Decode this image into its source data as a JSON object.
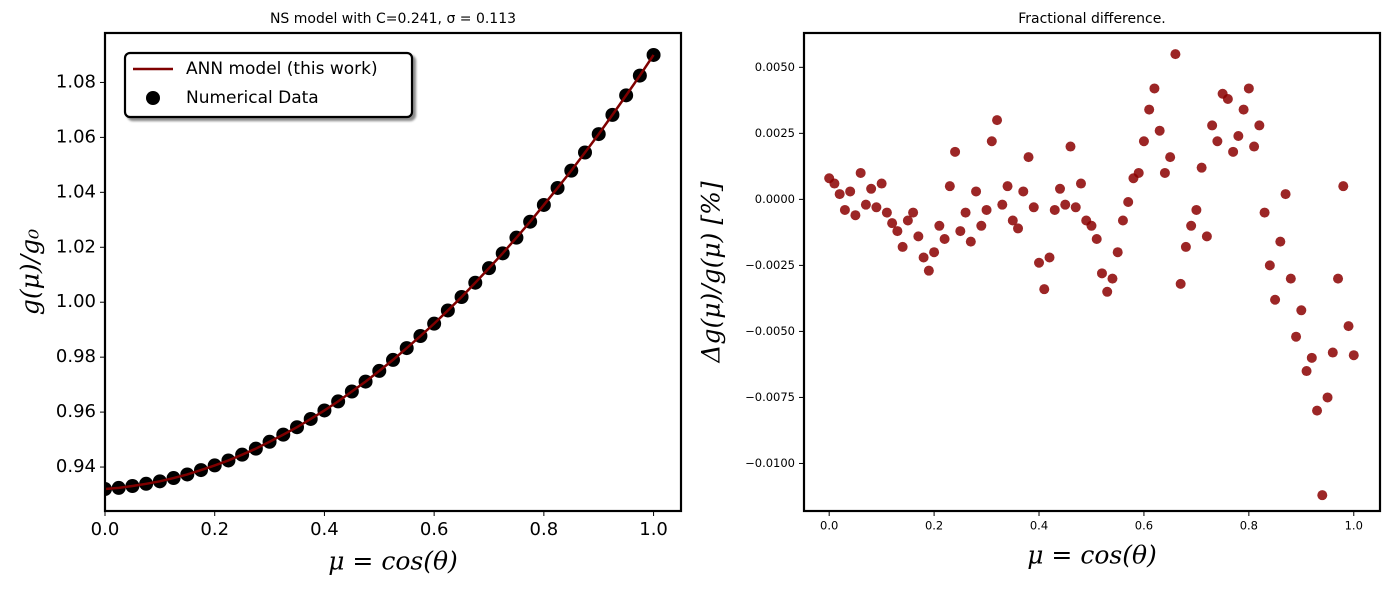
{
  "chart_data": [
    {
      "type": "line",
      "title": "NS model with C=0.241, σ = 0.113",
      "xlabel": "μ = cos(θ)",
      "ylabel": "g(μ)/g₀",
      "x": [
        0,
        0.025,
        0.05,
        0.075,
        0.1,
        0.125,
        0.15,
        0.175,
        0.2,
        0.225,
        0.25,
        0.275,
        0.3,
        0.325,
        0.35,
        0.375,
        0.4,
        0.425,
        0.45,
        0.475,
        0.5,
        0.525,
        0.55,
        0.575,
        0.6,
        0.625,
        0.65,
        0.675,
        0.7,
        0.725,
        0.75,
        0.775,
        0.8,
        0.825,
        0.85,
        0.875,
        0.9,
        0.925,
        0.95,
        0.975,
        1.0
      ],
      "series": [
        {
          "name": "ANN model (this work)",
          "type": "line",
          "color": "#7f0000",
          "values": [
            0.932,
            0.9324,
            0.9331,
            0.9339,
            0.9348,
            0.936,
            0.9373,
            0.9389,
            0.9406,
            0.9424,
            0.9445,
            0.9467,
            0.9492,
            0.9518,
            0.9545,
            0.9575,
            0.9606,
            0.9639,
            0.9675,
            0.9711,
            0.975,
            0.979,
            0.9833,
            0.9877,
            0.9922,
            0.997,
            1.0019,
            1.0071,
            1.0124,
            1.0178,
            1.0235,
            1.0293,
            1.0354,
            1.0416,
            1.0479,
            1.0545,
            1.0612,
            1.0682,
            1.0753,
            1.0825,
            1.09
          ]
        },
        {
          "name": "Numerical Data",
          "type": "scatter",
          "color": "#000000",
          "values": [
            0.932,
            0.9324,
            0.9331,
            0.9339,
            0.9348,
            0.936,
            0.9373,
            0.9389,
            0.9406,
            0.9424,
            0.9445,
            0.9467,
            0.9492,
            0.9518,
            0.9545,
            0.9575,
            0.9606,
            0.9639,
            0.9675,
            0.9711,
            0.975,
            0.979,
            0.9833,
            0.9877,
            0.9922,
            0.997,
            1.0019,
            1.0071,
            1.0124,
            1.0178,
            1.0235,
            1.0293,
            1.0354,
            1.0416,
            1.0479,
            1.0545,
            1.0612,
            1.0682,
            1.0753,
            1.0825,
            1.09
          ]
        }
      ],
      "xlim": [
        0,
        1.05
      ],
      "xticks": [
        {
          "value": 0,
          "label": "0.0"
        },
        {
          "value": 0.2,
          "label": "0.2"
        },
        {
          "value": 0.4,
          "label": "0.4"
        },
        {
          "value": 0.6,
          "label": "0.6"
        },
        {
          "value": 0.8,
          "label": "0.8"
        },
        {
          "value": 1,
          "label": "1.0"
        }
      ],
      "ylim": [
        0.924,
        1.098
      ],
      "yticks": [
        0.94,
        0.96,
        0.98,
        {
          "value": 1,
          "label": "1.00"
        },
        1.02,
        1.04,
        1.06,
        1.08
      ],
      "legend": "upper left"
    },
    {
      "type": "scatter",
      "title": "Fractional difference.",
      "xlabel": "μ = cos(θ)",
      "ylabel": "Δg(μ)/g(μ) [%]",
      "x": [
        0,
        0.01,
        0.02,
        0.03,
        0.04,
        0.05,
        0.06,
        0.07,
        0.08,
        0.09,
        0.1,
        0.11,
        0.12,
        0.13,
        0.14,
        0.15,
        0.16,
        0.17,
        0.18,
        0.19,
        0.2,
        0.21,
        0.22,
        0.23,
        0.24,
        0.25,
        0.26,
        0.27,
        0.28,
        0.29,
        0.3,
        0.31,
        0.32,
        0.33,
        0.34,
        0.35,
        0.36,
        0.37,
        0.38,
        0.39,
        0.4,
        0.41,
        0.42,
        0.43,
        0.44,
        0.45,
        0.46,
        0.47,
        0.48,
        0.49,
        0.5,
        0.51,
        0.52,
        0.53,
        0.54,
        0.55,
        0.56,
        0.57,
        0.58,
        0.59,
        0.6,
        0.61,
        0.62,
        0.63,
        0.64,
        0.65,
        0.66,
        0.67,
        0.68,
        0.69,
        0.7,
        0.71,
        0.72,
        0.73,
        0.74,
        0.75,
        0.76,
        0.77,
        0.78,
        0.79,
        0.8,
        0.81,
        0.82,
        0.83,
        0.84,
        0.85,
        0.86,
        0.87,
        0.88,
        0.89,
        0.9,
        0.91,
        0.92,
        0.93,
        0.94,
        0.95,
        0.96,
        0.97,
        0.98,
        0.99,
        1.0
      ],
      "series": [
        {
          "name": "Fractional difference",
          "type": "scatter",
          "color": "#8b0000",
          "values": [
            0.0008,
            0.0006,
            0.0002,
            -0.0004,
            0.0003,
            -0.0006,
            0.001,
            -0.0002,
            0.0004,
            -0.0003,
            0.0006,
            -0.0005,
            -0.0009,
            -0.0012,
            -0.0018,
            -0.0008,
            -0.0005,
            -0.0014,
            -0.0022,
            -0.0027,
            -0.002,
            -0.001,
            -0.0015,
            0.0005,
            0.0018,
            -0.0012,
            -0.0005,
            -0.0016,
            0.0003,
            -0.001,
            -0.0004,
            0.0022,
            0.003,
            -0.0002,
            0.0005,
            -0.0008,
            -0.0011,
            0.0003,
            0.0016,
            -0.0003,
            -0.0024,
            -0.0034,
            -0.0022,
            -0.0004,
            0.0004,
            -0.0002,
            0.002,
            -0.0003,
            0.0006,
            -0.0008,
            -0.001,
            -0.0015,
            -0.0028,
            -0.0035,
            -0.003,
            -0.002,
            -0.0008,
            -0.0001,
            0.0008,
            0.001,
            0.0022,
            0.0034,
            0.0042,
            0.0026,
            0.001,
            0.0016,
            0.0055,
            -0.0032,
            -0.0018,
            -0.001,
            -0.0004,
            0.0012,
            -0.0014,
            0.0028,
            0.0022,
            0.004,
            0.0038,
            0.0018,
            0.0024,
            0.0034,
            0.0042,
            0.002,
            0.0028,
            -0.0005,
            -0.0025,
            -0.0038,
            -0.0016,
            0.0002,
            -0.003,
            -0.0052,
            -0.0042,
            -0.0065,
            -0.006,
            -0.008,
            -0.0112,
            -0.0075,
            -0.0058,
            -0.003,
            0.0005,
            -0.0048,
            -0.0059
          ]
        }
      ],
      "xlim": [
        -0.048,
        1.05
      ],
      "xticks": [
        {
          "value": 0,
          "label": "0.0"
        },
        {
          "value": 0.2,
          "label": "0.2"
        },
        {
          "value": 0.4,
          "label": "0.4"
        },
        {
          "value": 0.6,
          "label": "0.6"
        },
        {
          "value": 0.8,
          "label": "0.8"
        },
        {
          "value": 1,
          "label": "1.0"
        }
      ],
      "ylim": [
        -0.0118,
        0.0063
      ],
      "yticks": [
        {
          "value": -0.01,
          "label": "−0.0100"
        },
        {
          "value": -0.0075,
          "label": "−0.0075"
        },
        {
          "value": -0.005,
          "label": "−0.0050"
        },
        {
          "value": -0.0025,
          "label": "−0.0025"
        },
        {
          "value": 0,
          "label": "0.0000"
        },
        {
          "value": 0.0025,
          "label": "0.0025"
        },
        {
          "value": 0.005,
          "label": "0.0050"
        }
      ]
    }
  ]
}
